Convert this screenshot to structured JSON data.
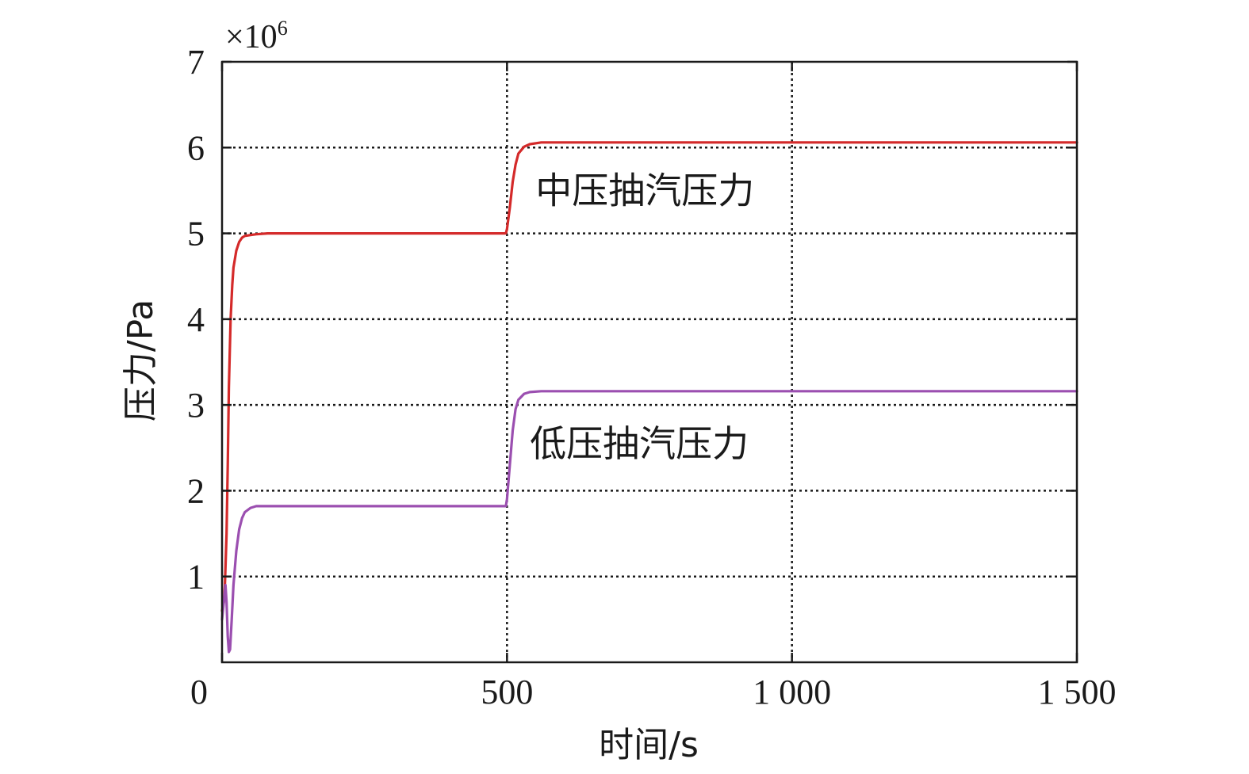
{
  "chart_data": {
    "type": "line",
    "xlabel": "时间/s",
    "ylabel": "压力/Pa",
    "scale_note": {
      "base": "×10",
      "exponent": "6"
    },
    "xlim": [
      0,
      1500
    ],
    "ylim": [
      0,
      7
    ],
    "x_ticks": [
      {
        "value": 0,
        "label": "0"
      },
      {
        "value": 500,
        "label": "500"
      },
      {
        "value": 1000,
        "label": "1 000"
      },
      {
        "value": 1500,
        "label": "1 500"
      }
    ],
    "y_ticks": [
      {
        "value": 1,
        "label": "1"
      },
      {
        "value": 2,
        "label": "2"
      },
      {
        "value": 3,
        "label": "3"
      },
      {
        "value": 4,
        "label": "4"
      },
      {
        "value": 5,
        "label": "5"
      },
      {
        "value": 6,
        "label": "6"
      },
      {
        "value": 7,
        "label": "7"
      }
    ],
    "grid": true,
    "series": [
      {
        "name": "中压抽汽压力",
        "color": "#d42a2a",
        "x": [
          0,
          3,
          5,
          8,
          10,
          12,
          15,
          18,
          20,
          25,
          30,
          35,
          40,
          50,
          60,
          80,
          100,
          200,
          300,
          400,
          498,
          500,
          505,
          510,
          515,
          520,
          530,
          540,
          560,
          600,
          800,
          1000,
          1200,
          1500
        ],
        "y": [
          0.6,
          0.7,
          0.9,
          1.5,
          2.3,
          3.2,
          4.0,
          4.4,
          4.6,
          4.8,
          4.9,
          4.95,
          4.97,
          4.98,
          4.99,
          5.0,
          5.0,
          5.0,
          5.0,
          5.0,
          5.0,
          5.05,
          5.3,
          5.6,
          5.8,
          5.93,
          6.01,
          6.04,
          6.06,
          6.06,
          6.06,
          6.06,
          6.06,
          6.06
        ]
      },
      {
        "name": "低压抽汽压力",
        "color": "#9b4fb0",
        "x": [
          0,
          3,
          6,
          8,
          10,
          12,
          14,
          17,
          20,
          25,
          30,
          35,
          40,
          50,
          60,
          70,
          80,
          100,
          200,
          300,
          400,
          498,
          500,
          505,
          510,
          515,
          520,
          530,
          540,
          560,
          600,
          800,
          1000,
          1200,
          1500
        ],
        "y": [
          0.5,
          0.7,
          0.9,
          0.7,
          0.3,
          0.12,
          0.15,
          0.5,
          0.9,
          1.3,
          1.55,
          1.68,
          1.75,
          1.8,
          1.82,
          1.82,
          1.82,
          1.82,
          1.82,
          1.82,
          1.82,
          1.82,
          1.9,
          2.3,
          2.7,
          2.95,
          3.06,
          3.13,
          3.15,
          3.16,
          3.16,
          3.16,
          3.16,
          3.16,
          3.16
        ]
      }
    ],
    "annotations": [
      {
        "text": "中压抽汽压力",
        "x": 550,
        "y": 5.5
      },
      {
        "text": "低压抽汽压力",
        "x": 540,
        "y": 2.55
      }
    ]
  }
}
